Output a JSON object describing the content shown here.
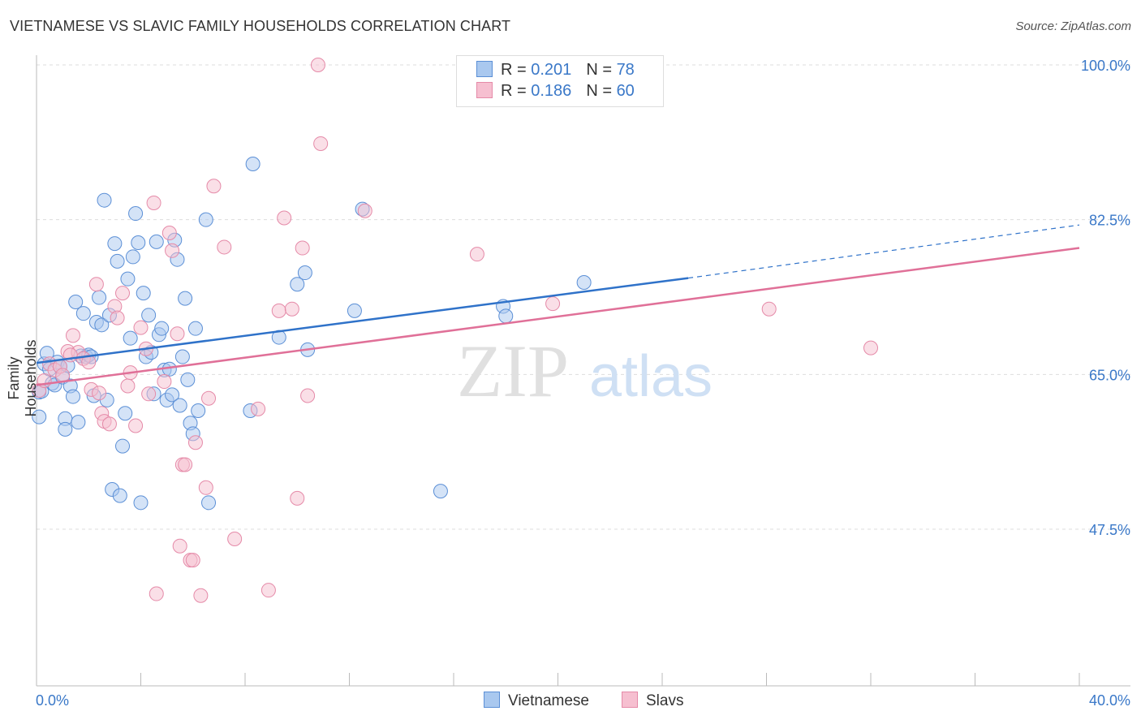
{
  "title": "VIETNAMESE VS SLAVIC FAMILY HOUSEHOLDS CORRELATION CHART",
  "source": "Source: ZipAtlas.com",
  "watermark": {
    "zip": "ZIP",
    "atlas": "atlas"
  },
  "colors": {
    "vietnamese_fill": "#a9c8ef",
    "vietnamese_stroke": "#5b8fd6",
    "vietnamese_line": "#2f72c9",
    "slavs_fill": "#f6bfd0",
    "slavs_stroke": "#e58aa8",
    "slavs_line": "#e07098",
    "tick_label": "#3a78c8",
    "grid": "#dddddd"
  },
  "legend": {
    "rows": [
      {
        "r_label": "R = ",
        "r_value": "0.201",
        "n_label": "N = ",
        "n_value": "78"
      },
      {
        "r_label": "R = ",
        "r_value": "0.186",
        "n_label": "N = ",
        "n_value": "60"
      }
    ]
  },
  "bottom_legend": [
    "Vietnamese",
    "Slavs"
  ],
  "chart_data": {
    "type": "scatter",
    "title": "VIETNAMESE VS SLAVIC FAMILY HOUSEHOLDS CORRELATION CHART",
    "xlabel": "",
    "ylabel": "Family Households",
    "xlim": [
      0,
      40
    ],
    "ylim": [
      32,
      102
    ],
    "x_tick_labels": [
      "0.0%",
      "40.0%"
    ],
    "y_ticks": [
      47.5,
      65.0,
      82.5,
      100.0
    ],
    "y_tick_labels": [
      "47.5%",
      "65.0%",
      "82.5%",
      "100.0%"
    ],
    "grid": true,
    "legend_position": "top-center",
    "series": [
      {
        "name": "Vietnamese",
        "r": 0.201,
        "n": 78,
        "trend": {
          "x0": 0,
          "y0": 66.3,
          "x1": 25,
          "y1": 75.9,
          "dashed_to_x": 40,
          "dashed_to_y": 81.9
        },
        "points": [
          [
            0.1,
            60.2
          ],
          [
            0.1,
            63.0
          ],
          [
            0.3,
            66.2
          ],
          [
            0.4,
            67.4
          ],
          [
            0.5,
            65.6
          ],
          [
            0.6,
            64.0
          ],
          [
            0.7,
            63.8
          ],
          [
            0.8,
            66.4
          ],
          [
            0.9,
            65.9
          ],
          [
            1.0,
            64.7
          ],
          [
            1.1,
            60.0
          ],
          [
            1.1,
            58.8
          ],
          [
            1.2,
            66.0
          ],
          [
            1.3,
            63.7
          ],
          [
            1.4,
            62.5
          ],
          [
            1.5,
            73.2
          ],
          [
            1.6,
            59.6
          ],
          [
            1.7,
            67.1
          ],
          [
            1.8,
            71.9
          ],
          [
            1.9,
            67.0
          ],
          [
            2.0,
            67.2
          ],
          [
            2.1,
            67.0
          ],
          [
            2.2,
            62.6
          ],
          [
            2.3,
            70.9
          ],
          [
            2.4,
            73.7
          ],
          [
            2.5,
            70.6
          ],
          [
            2.6,
            84.7
          ],
          [
            2.7,
            62.1
          ],
          [
            2.8,
            71.7
          ],
          [
            2.9,
            52.0
          ],
          [
            3.0,
            79.8
          ],
          [
            3.1,
            77.8
          ],
          [
            3.2,
            51.3
          ],
          [
            3.3,
            56.9
          ],
          [
            3.4,
            60.6
          ],
          [
            3.5,
            75.8
          ],
          [
            3.6,
            69.1
          ],
          [
            3.7,
            78.3
          ],
          [
            3.8,
            83.2
          ],
          [
            3.9,
            79.9
          ],
          [
            4.0,
            50.5
          ],
          [
            4.1,
            74.2
          ],
          [
            4.2,
            67.0
          ],
          [
            4.3,
            71.7
          ],
          [
            4.4,
            67.5
          ],
          [
            4.5,
            62.8
          ],
          [
            4.6,
            80.0
          ],
          [
            4.7,
            69.5
          ],
          [
            4.8,
            70.2
          ],
          [
            4.9,
            65.5
          ],
          [
            5.0,
            62.1
          ],
          [
            5.1,
            65.6
          ],
          [
            5.2,
            62.7
          ],
          [
            5.3,
            80.2
          ],
          [
            5.4,
            78.0
          ],
          [
            5.5,
            61.5
          ],
          [
            5.6,
            67.0
          ],
          [
            5.7,
            73.6
          ],
          [
            5.8,
            64.4
          ],
          [
            5.9,
            59.5
          ],
          [
            6.0,
            58.3
          ],
          [
            6.1,
            70.2
          ],
          [
            6.2,
            60.9
          ],
          [
            6.5,
            82.5
          ],
          [
            6.6,
            50.5
          ],
          [
            8.2,
            60.9
          ],
          [
            8.3,
            88.8
          ],
          [
            9.3,
            69.2
          ],
          [
            10.0,
            75.2
          ],
          [
            10.3,
            76.5
          ],
          [
            10.4,
            67.8
          ],
          [
            12.2,
            72.2
          ],
          [
            12.5,
            83.7
          ],
          [
            15.5,
            51.8
          ],
          [
            17.9,
            72.7
          ],
          [
            18.0,
            71.6
          ],
          [
            21.0,
            75.4
          ],
          [
            0.2,
            63.1
          ]
        ]
      },
      {
        "name": "Slavs",
        "r": 0.186,
        "n": 60,
        "trend": {
          "x0": 0,
          "y0": 63.8,
          "x1": 40,
          "y1": 79.3
        },
        "points": [
          [
            0.1,
            63.2
          ],
          [
            0.3,
            64.3
          ],
          [
            0.5,
            66.2
          ],
          [
            0.7,
            65.5
          ],
          [
            0.9,
            65.9
          ],
          [
            1.0,
            64.9
          ],
          [
            1.2,
            67.6
          ],
          [
            1.4,
            69.4
          ],
          [
            1.6,
            67.5
          ],
          [
            1.8,
            66.8
          ],
          [
            2.0,
            66.4
          ],
          [
            2.1,
            63.3
          ],
          [
            2.3,
            75.2
          ],
          [
            2.4,
            62.9
          ],
          [
            2.5,
            60.6
          ],
          [
            2.6,
            59.7
          ],
          [
            2.8,
            59.4
          ],
          [
            3.0,
            72.7
          ],
          [
            3.1,
            71.4
          ],
          [
            3.3,
            74.2
          ],
          [
            3.5,
            63.7
          ],
          [
            3.6,
            65.2
          ],
          [
            3.8,
            59.2
          ],
          [
            4.0,
            70.3
          ],
          [
            4.2,
            67.9
          ],
          [
            4.3,
            62.8
          ],
          [
            4.5,
            84.4
          ],
          [
            4.6,
            40.2
          ],
          [
            4.9,
            64.2
          ],
          [
            5.1,
            81.0
          ],
          [
            5.2,
            79.0
          ],
          [
            5.4,
            69.6
          ],
          [
            5.5,
            45.6
          ],
          [
            5.6,
            54.8
          ],
          [
            5.7,
            54.8
          ],
          [
            5.9,
            44.0
          ],
          [
            6.0,
            44.0
          ],
          [
            6.1,
            57.3
          ],
          [
            6.3,
            40.0
          ],
          [
            6.5,
            52.2
          ],
          [
            6.6,
            62.3
          ],
          [
            6.8,
            86.3
          ],
          [
            7.2,
            79.4
          ],
          [
            7.6,
            46.4
          ],
          [
            8.5,
            61.1
          ],
          [
            8.9,
            40.6
          ],
          [
            9.3,
            72.2
          ],
          [
            9.5,
            82.7
          ],
          [
            9.8,
            72.4
          ],
          [
            10.0,
            51.0
          ],
          [
            10.2,
            79.3
          ],
          [
            10.4,
            62.6
          ],
          [
            10.8,
            100.0
          ],
          [
            10.9,
            91.1
          ],
          [
            12.6,
            83.5
          ],
          [
            16.9,
            78.6
          ],
          [
            19.8,
            73.0
          ],
          [
            28.1,
            72.4
          ],
          [
            32.0,
            68.0
          ],
          [
            1.3,
            67.2
          ]
        ]
      }
    ]
  }
}
